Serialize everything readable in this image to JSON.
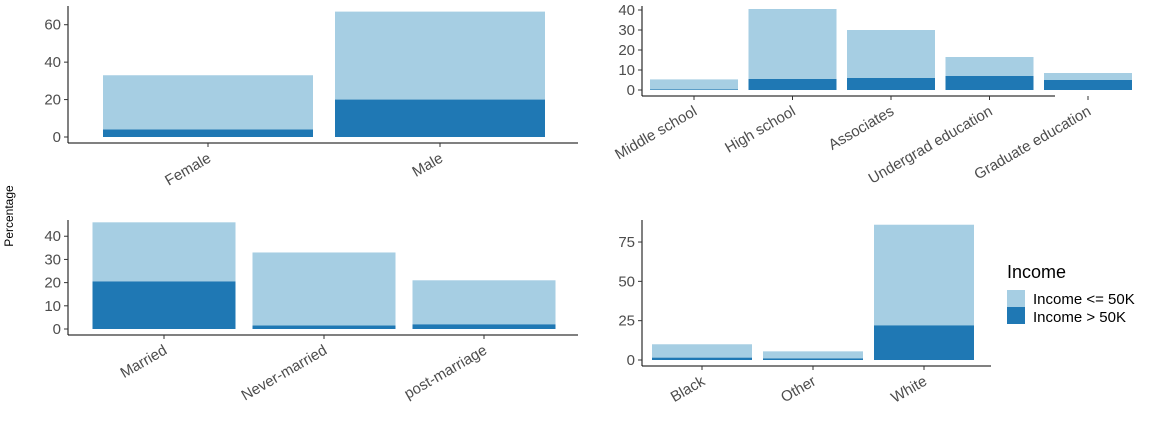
{
  "ylabel": "Percentage",
  "legend": {
    "title": "Income",
    "placement": "right",
    "items": [
      {
        "label": "Income <= 50K",
        "color": "#a6cee3"
      },
      {
        "label": "Income > 50K",
        "color": "#1f78b4"
      }
    ]
  },
  "chart_data": [
    {
      "type": "bar",
      "stacked": true,
      "categories": [
        "Female",
        "Male"
      ],
      "ylim": [
        0,
        70
      ],
      "yticks": [
        0,
        20,
        40,
        60
      ],
      "series": [
        {
          "name": "Income <= 50K",
          "values": [
            29,
            47
          ]
        },
        {
          "name": "Income > 50K",
          "values": [
            4,
            20
          ]
        }
      ]
    },
    {
      "type": "bar",
      "stacked": true,
      "categories": [
        "Middle school",
        "High school",
        "Associates",
        "Undergrad education",
        "Graduate education"
      ],
      "ylim": [
        0,
        42
      ],
      "yticks": [
        0,
        10,
        20,
        30,
        40
      ],
      "series": [
        {
          "name": "Income <= 50K",
          "values": [
            5,
            35,
            24,
            9.5,
            3.5
          ]
        },
        {
          "name": "Income > 50K",
          "values": [
            0.3,
            5.5,
            6,
            7,
            5
          ]
        }
      ]
    },
    {
      "type": "bar",
      "stacked": true,
      "categories": [
        "Married",
        "Never-married",
        "post-marriage"
      ],
      "ylim": [
        0,
        47
      ],
      "yticks": [
        0,
        10,
        20,
        30,
        40
      ],
      "series": [
        {
          "name": "Income <= 50K",
          "values": [
            25.5,
            31.5,
            19
          ]
        },
        {
          "name": "Income > 50K",
          "values": [
            20.5,
            1.5,
            2
          ]
        }
      ]
    },
    {
      "type": "bar",
      "stacked": true,
      "categories": [
        "Black",
        "Other",
        "White"
      ],
      "ylim": [
        0,
        89
      ],
      "yticks": [
        0,
        25,
        50,
        75
      ],
      "series": [
        {
          "name": "Income <= 50K",
          "values": [
            8.5,
            4.5,
            64
          ]
        },
        {
          "name": "Income > 50K",
          "values": [
            1.5,
            1,
            22
          ]
        }
      ]
    }
  ]
}
